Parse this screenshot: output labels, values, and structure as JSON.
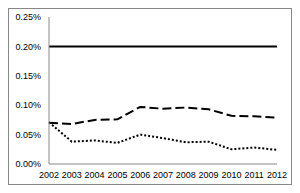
{
  "chart_data": {
    "type": "line",
    "categories": [
      "2002",
      "2003",
      "2004",
      "2005",
      "2006",
      "2007",
      "2008",
      "2009",
      "2010",
      "2011",
      "2012"
    ],
    "series": [
      {
        "color": "#000000",
        "line_style": "solid",
        "values": [
          0.2,
          0.2,
          0.2,
          0.2,
          0.2,
          0.2,
          0.2,
          0.2,
          0.2,
          0.2,
          0.2
        ]
      },
      {
        "color": "#000000",
        "line_style": "dashed",
        "values": [
          0.07,
          0.068,
          0.075,
          0.076,
          0.097,
          0.094,
          0.096,
          0.093,
          0.082,
          0.081,
          0.079
        ]
      },
      {
        "color": "#000000",
        "line_style": "dotted",
        "values": [
          0.071,
          0.038,
          0.04,
          0.036,
          0.05,
          0.044,
          0.037,
          0.038,
          0.025,
          0.028,
          0.024
        ]
      }
    ],
    "ylim": [
      0,
      0.25
    ],
    "yticks": [
      {
        "value": 0,
        "label": "0.00%"
      },
      {
        "value": 0.05,
        "label": "0.05%"
      },
      {
        "value": 0.1,
        "label": "0.10%"
      },
      {
        "value": 0.15,
        "label": "0.15%"
      },
      {
        "value": 0.2,
        "label": "0.20%"
      },
      {
        "value": 0.25,
        "label": "0.25%"
      }
    ],
    "grid": false
  }
}
